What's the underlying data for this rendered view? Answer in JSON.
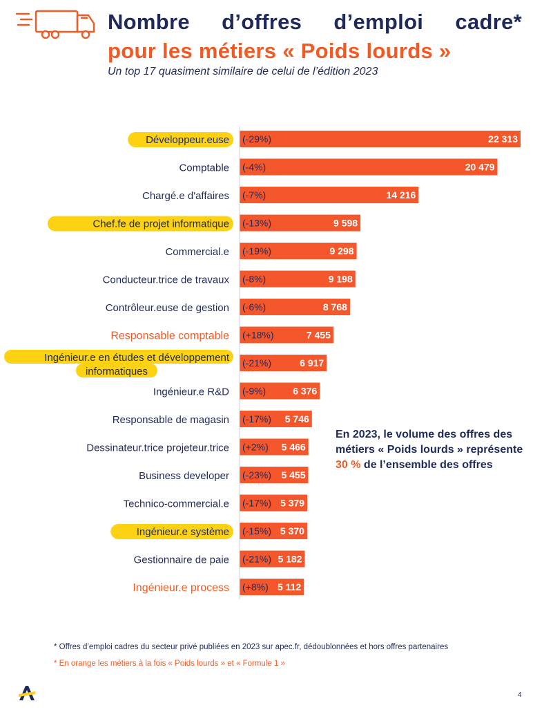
{
  "colors": {
    "navy": "#1f2a5a",
    "orange": "#f15a24",
    "bar": "#f4572c",
    "highlight": "#fcd213"
  },
  "header": {
    "icon": "truck-icon",
    "title_line1": "Nombre d’offres d’emploi cadre*",
    "title_line2": "pour les métiers « Poids lourds »",
    "subtitle": "Un top 17 quasiment similaire de celui de l’édition 2023"
  },
  "chart_data": {
    "type": "bar",
    "orientation": "horizontal",
    "title": "",
    "xlabel": "",
    "ylabel": "",
    "xlim": [
      0,
      22313
    ],
    "grid": false,
    "categories": [
      "Développeur.euse",
      "Comptable",
      "Chargé.e d'affaires",
      "Chef.fe de projet informatique",
      "Commercial.e",
      "Conducteur.trice de travaux",
      "Contrôleur.euse de gestion",
      "Responsable comptable",
      "Ingénieur.e en études et développement informatiques",
      "Ingénieur.e R&D",
      "Responsable de magasin",
      "Dessinateur.trice projeteur.trice",
      "Business developer",
      "Technico-commercial.e",
      "Ingénieur.e système",
      "Gestionnaire de paie",
      "Ingénieur.e process"
    ],
    "values": [
      22313,
      20479,
      14216,
      9598,
      9298,
      9198,
      8768,
      7455,
      6917,
      6376,
      5746,
      5466,
      5455,
      5379,
      5370,
      5182,
      5112
    ],
    "value_labels": [
      "22 313",
      "20 479",
      "14 216",
      "9 598",
      "9 298",
      "9 198",
      "8 768",
      "7 455",
      "6 917",
      "6 376",
      "5 746",
      "5 466",
      "5 455",
      "5 379",
      "5 370",
      "5 182",
      "5 112"
    ],
    "changes": [
      "(-29%)",
      "(-4%)",
      "(-7%)",
      "(-13%)",
      "(-19%)",
      "(-8%)",
      "(-6%)",
      "(+18%)",
      "(-21%)",
      "(-9%)",
      "(-17%)",
      "(+2%)",
      "(-23%)",
      "(-17%)",
      "(-15%)",
      "(-21%)",
      "(+8%)"
    ],
    "highlighted": [
      true,
      false,
      false,
      true,
      false,
      false,
      false,
      false,
      true,
      false,
      false,
      false,
      false,
      false,
      true,
      false,
      false
    ],
    "orange_label": [
      false,
      false,
      false,
      false,
      false,
      false,
      false,
      true,
      false,
      false,
      false,
      false,
      false,
      false,
      false,
      false,
      true
    ]
  },
  "callout": {
    "line1": "En 2023, le volume des offres des",
    "line2": "métiers « Poids lourds » représente",
    "highlight": "30 %",
    "line3_rest": " de l’ensemble des offres"
  },
  "footnotes": {
    "note1": "* Offres d’emploi cadres du secteur privé publiées en 2023 sur apec.fr, dédoublonnées et hors offres partenaires",
    "note2": "* En orange les métiers à la fois « Poids lourds » et « Formule 1 »"
  },
  "footer": {
    "logo": "apec-logo-icon",
    "page_number": "4"
  }
}
